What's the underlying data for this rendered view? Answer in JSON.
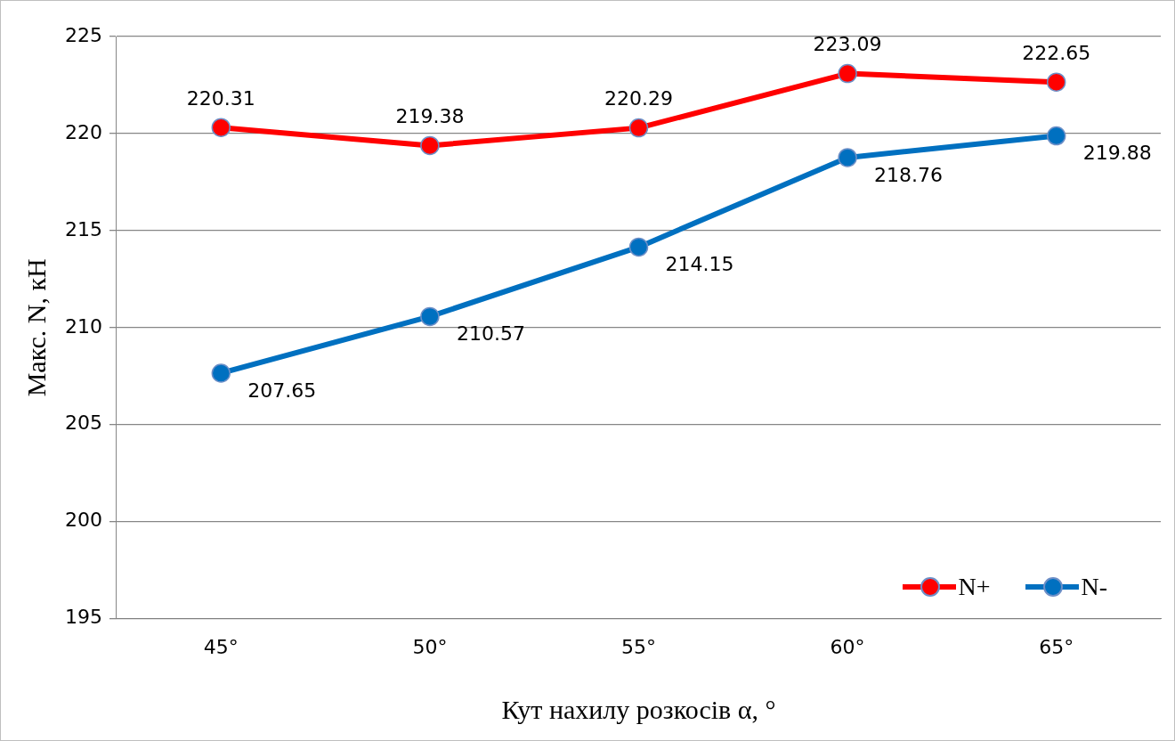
{
  "chart_data": {
    "type": "line",
    "xlabel": "Кут нахилу розкосів α, °",
    "ylabel": "Макс. N, кН",
    "categories": [
      "45°",
      "50°",
      "55°",
      "60°",
      "65°"
    ],
    "series": [
      {
        "name": "N+",
        "color": "#ff0000",
        "values": [
          220.31,
          219.38,
          220.29,
          223.09,
          222.65
        ]
      },
      {
        "name": "N-",
        "color": "#0070c0",
        "values": [
          207.65,
          210.57,
          214.15,
          218.76,
          219.88
        ]
      }
    ],
    "ylim": [
      195,
      225
    ],
    "yticks": [
      195,
      200,
      205,
      210,
      215,
      220,
      225
    ],
    "grid": "y",
    "legend": "bottom right",
    "marker": "circle",
    "line_style": "solid",
    "data_labels": true
  }
}
